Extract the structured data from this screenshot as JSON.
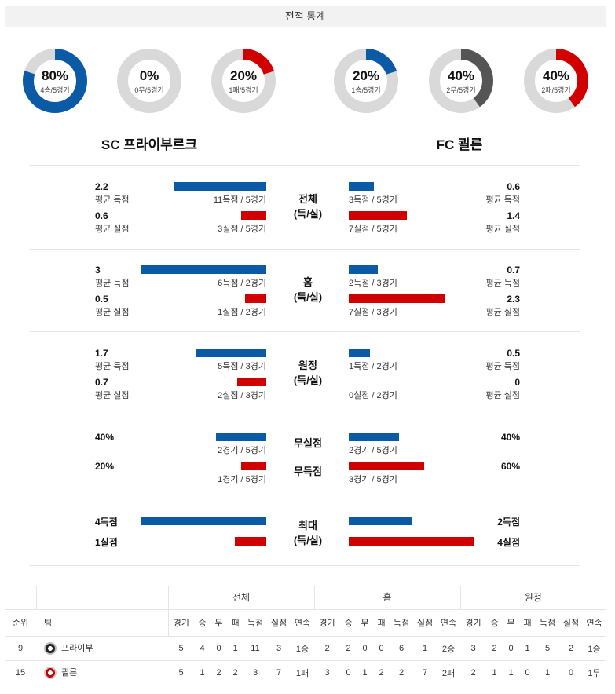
{
  "header": {
    "title": "전적 통계"
  },
  "teams": {
    "home_name": "SC 프라이부르크",
    "away_name": "FC 쾰른"
  },
  "donuts": {
    "home": [
      {
        "pct": "80%",
        "sub": "4승/5경기",
        "value": 0.8,
        "color": "#0a5aa5"
      },
      {
        "pct": "0%",
        "sub": "0무/5경기",
        "value": 0.0,
        "color": "#555555"
      },
      {
        "pct": "20%",
        "sub": "1패/5경기",
        "value": 0.2,
        "color": "#d10000"
      }
    ],
    "away": [
      {
        "pct": "20%",
        "sub": "1승/5경기",
        "value": 0.2,
        "color": "#0a5aa5"
      },
      {
        "pct": "40%",
        "sub": "2무/5경기",
        "value": 0.4,
        "color": "#555555"
      },
      {
        "pct": "40%",
        "sub": "2패/5경기",
        "value": 0.4,
        "color": "#d10000"
      }
    ]
  },
  "labels": {
    "avg_score": "평균 득점",
    "avg_concede": "평균 실점"
  },
  "sections": {
    "overall": {
      "title1": "전체",
      "title2": "(득/실)",
      "home_score": {
        "value": "2.2",
        "caption": "11득점 / 5경기",
        "level": 2.2
      },
      "home_concede": {
        "value": "0.6",
        "caption": "3실점 / 5경기",
        "level": 0.6
      },
      "away_score": {
        "value": "0.6",
        "caption": "3득점 / 5경기",
        "level": 0.6
      },
      "away_concede": {
        "value": "1.4",
        "caption": "7실점 / 5경기",
        "level": 1.4
      }
    },
    "home": {
      "title1": "홈",
      "title2": "(득/실)",
      "home_score": {
        "value": "3",
        "caption": "6득점 / 2경기",
        "level": 3
      },
      "home_concede": {
        "value": "0.5",
        "caption": "1실점 / 2경기",
        "level": 0.5
      },
      "away_score": {
        "value": "0.7",
        "caption": "2득점 / 3경기",
        "level": 0.7
      },
      "away_concede": {
        "value": "2.3",
        "caption": "7실점 / 3경기",
        "level": 2.3
      }
    },
    "away": {
      "title1": "원정",
      "title2": "(득/실)",
      "home_score": {
        "value": "1.7",
        "caption": "5득점 / 3경기",
        "level": 1.7
      },
      "home_concede": {
        "value": "0.7",
        "caption": "2실점 / 3경기",
        "level": 0.7
      },
      "away_score": {
        "value": "0.5",
        "caption": "1득점 / 2경기",
        "level": 0.5
      },
      "away_concede": {
        "value": "0",
        "caption": "0실점 / 2경기",
        "level": 0
      }
    },
    "clean": {
      "title_a": "무실점",
      "title_b": "무득점",
      "home_clean": {
        "value": "40%",
        "caption": "2경기 / 5경기",
        "level": 0.4
      },
      "home_noscore": {
        "value": "20%",
        "caption": "1경기 / 5경기",
        "level": 0.2
      },
      "away_clean": {
        "value": "40%",
        "caption": "2경기 / 5경기",
        "level": 0.4
      },
      "away_noscore": {
        "value": "60%",
        "caption": "3경기 / 5경기",
        "level": 0.6
      }
    },
    "max": {
      "title1": "최대",
      "title2": "(득/실)",
      "home_score": {
        "value": "4득점",
        "level": 4
      },
      "home_concede": {
        "value": "1실점",
        "level": 1
      },
      "away_score": {
        "value": "2득점",
        "level": 2
      },
      "away_concede": {
        "value": "4실점",
        "level": 4
      }
    }
  },
  "standings": {
    "groups": [
      "전체",
      "홈",
      "원정"
    ],
    "rank_label": "순위",
    "team_label": "팀",
    "columns": [
      "경기",
      "승",
      "무",
      "패",
      "득점",
      "실점",
      "연속"
    ],
    "rows": [
      {
        "rank": "9",
        "team": "프라이부",
        "overall": [
          "5",
          "4",
          "0",
          "1",
          "11",
          "3",
          "1승"
        ],
        "home": [
          "2",
          "2",
          "0",
          "0",
          "6",
          "1",
          "2승"
        ],
        "away": [
          "3",
          "2",
          "0",
          "1",
          "5",
          "2",
          "1승"
        ]
      },
      {
        "rank": "15",
        "team": "쾰른",
        "overall": [
          "5",
          "1",
          "2",
          "2",
          "3",
          "7",
          "1패"
        ],
        "home": [
          "3",
          "0",
          "1",
          "2",
          "2",
          "7",
          "2패"
        ],
        "away": [
          "2",
          "1",
          "1",
          "0",
          "1",
          "0",
          "1무"
        ]
      }
    ]
  }
}
